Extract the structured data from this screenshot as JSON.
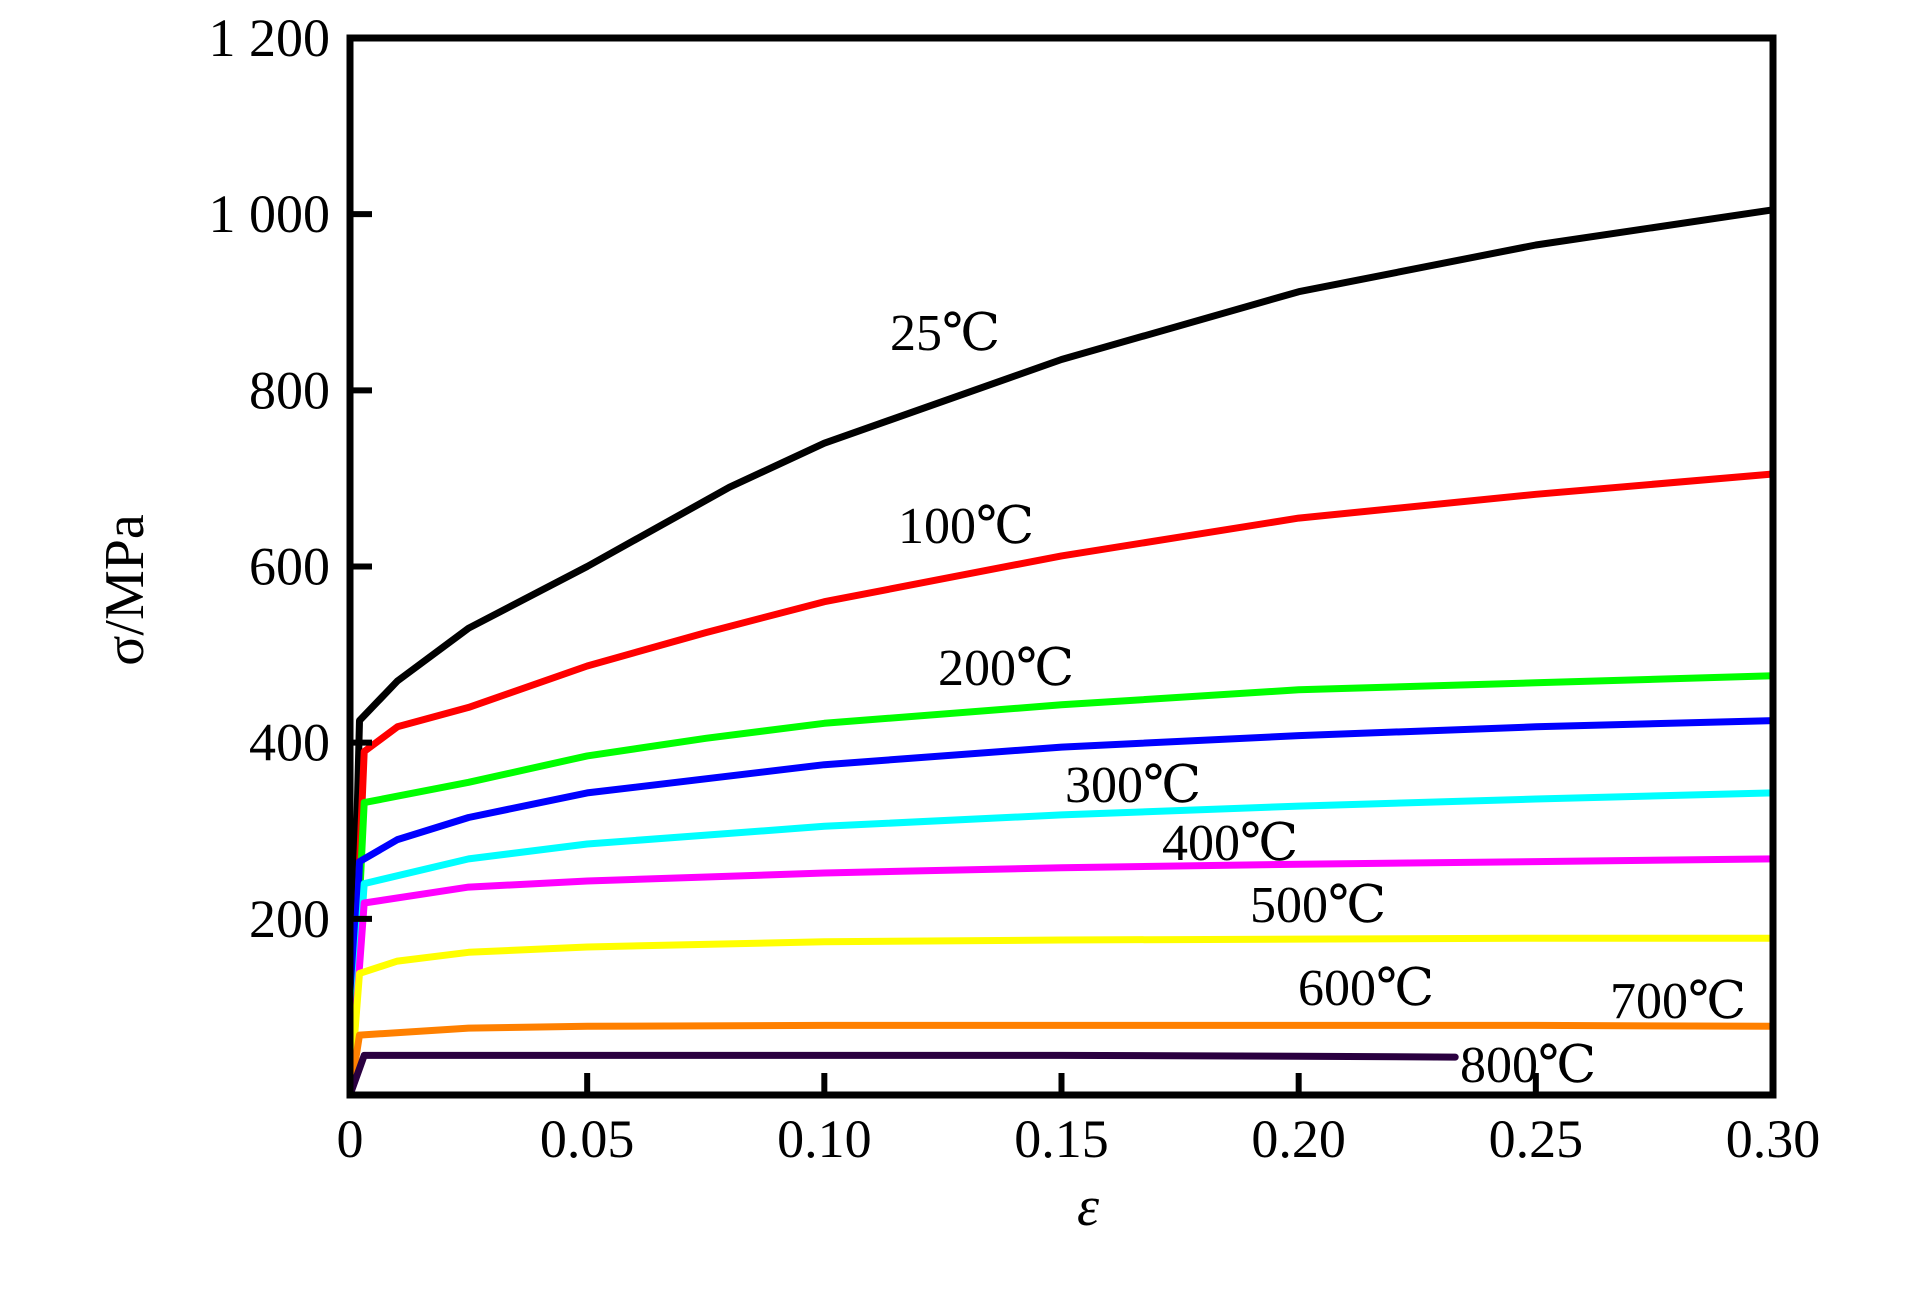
{
  "chart_data": {
    "type": "line",
    "title": "",
    "xlabel": "ε",
    "ylabel": "σ/MPa",
    "xlim": [
      0,
      0.3
    ],
    "ylim": [
      0,
      1200
    ],
    "grid": false,
    "x_ticks": [
      "0",
      "0.05",
      "0.10",
      "0.15",
      "0.20",
      "0.25",
      "0.30"
    ],
    "y_ticks": [
      "200",
      "400",
      "600",
      "800",
      "1 000",
      "1 200"
    ],
    "series": [
      {
        "name": "25℃",
        "color": "#000000",
        "x": [
          0,
          0.002,
          0.01,
          0.025,
          0.05,
          0.08,
          0.1,
          0.15,
          0.2,
          0.25,
          0.3
        ],
        "y": [
          0,
          425,
          470,
          530,
          600,
          690,
          740,
          835,
          912,
          965,
          1005
        ]
      },
      {
        "name": "100℃",
        "color": "#ff0000",
        "x": [
          0,
          0.003,
          0.01,
          0.025,
          0.05,
          0.075,
          0.1,
          0.15,
          0.2,
          0.25,
          0.3
        ],
        "y": [
          0,
          390,
          418,
          440,
          487,
          525,
          560,
          612,
          655,
          682,
          705
        ]
      },
      {
        "name": "200℃",
        "color": "#00ff00",
        "x": [
          0,
          0.003,
          0.025,
          0.05,
          0.075,
          0.1,
          0.15,
          0.2,
          0.25,
          0.3
        ],
        "y": [
          0,
          332,
          355,
          385,
          405,
          422,
          443,
          460,
          468,
          476
        ]
      },
      {
        "name": "300℃",
        "color": "#0000ff",
        "x": [
          0,
          0.002,
          0.01,
          0.025,
          0.05,
          0.1,
          0.15,
          0.2,
          0.25,
          0.3
        ],
        "y": [
          0,
          265,
          290,
          315,
          343,
          375,
          395,
          408,
          418,
          425
        ]
      },
      {
        "name": "400℃",
        "color": "#00ffff",
        "x": [
          0,
          0.003,
          0.025,
          0.05,
          0.1,
          0.15,
          0.2,
          0.25,
          0.3
        ],
        "y": [
          0,
          240,
          268,
          285,
          305,
          318,
          328,
          336,
          343
        ]
      },
      {
        "name": "500℃",
        "color": "#ff00ff",
        "x": [
          0,
          0.003,
          0.025,
          0.05,
          0.1,
          0.15,
          0.2,
          0.25,
          0.3
        ],
        "y": [
          0,
          218,
          236,
          243,
          252,
          258,
          262,
          265,
          268
        ]
      },
      {
        "name": "600℃",
        "color": "#ffff00",
        "x": [
          0,
          0.002,
          0.01,
          0.025,
          0.05,
          0.1,
          0.15,
          0.2,
          0.25,
          0.3
        ],
        "y": [
          0,
          138,
          152,
          162,
          168,
          174,
          176,
          177,
          178,
          178
        ]
      },
      {
        "name": "700℃",
        "color": "#ff8000",
        "x": [
          0,
          0.002,
          0.025,
          0.05,
          0.1,
          0.15,
          0.2,
          0.25,
          0.3
        ],
        "y": [
          0,
          68,
          76,
          78,
          79,
          79,
          79,
          79,
          78
        ]
      },
      {
        "name": "800℃",
        "color": "#2a0040",
        "x": [
          0,
          0.003,
          0.05,
          0.1,
          0.15,
          0.2,
          0.233
        ],
        "y": [
          0,
          45,
          45,
          45,
          45,
          44,
          43
        ]
      }
    ]
  }
}
